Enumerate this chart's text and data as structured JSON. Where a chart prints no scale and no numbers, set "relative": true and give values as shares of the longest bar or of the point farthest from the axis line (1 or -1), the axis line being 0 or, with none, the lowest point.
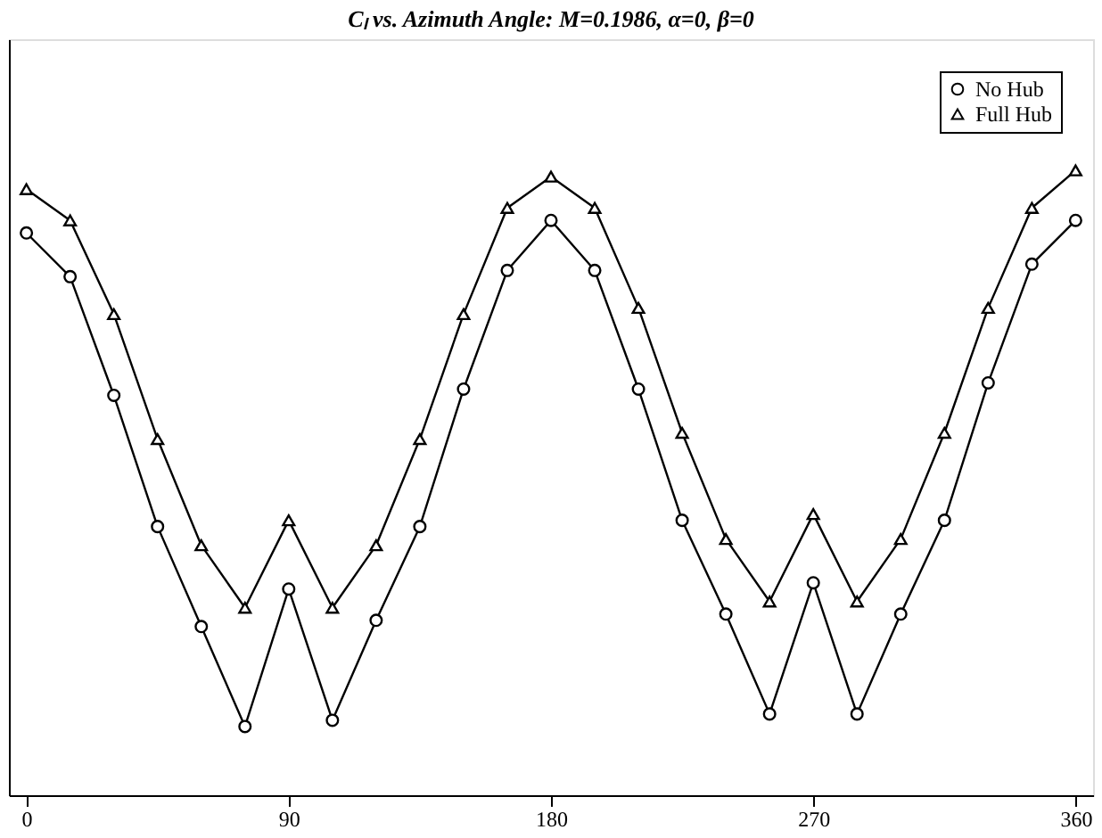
{
  "chart_data": {
    "type": "line",
    "title": "Cₗ vs. Azimuth Angle: M=0.1986, α=0, β=0",
    "x": [
      0,
      15,
      30,
      45,
      60,
      75,
      90,
      105,
      120,
      135,
      150,
      165,
      180,
      195,
      210,
      225,
      240,
      255,
      270,
      285,
      300,
      315,
      330,
      345,
      360
    ],
    "xlim": [
      -6,
      366
    ],
    "xticks": [
      0,
      90,
      180,
      270,
      360
    ],
    "relative": true,
    "grid": false,
    "legend": "top right",
    "line_style": "solid",
    "series": [
      {
        "name": "No Hub",
        "color": "#000000",
        "marker": "circle",
        "values": [
          0.9,
          0.83,
          0.64,
          0.43,
          0.27,
          0.11,
          0.33,
          0.12,
          0.28,
          0.43,
          0.65,
          0.84,
          0.92,
          0.84,
          0.65,
          0.44,
          0.29,
          0.13,
          0.34,
          0.13,
          0.29,
          0.44,
          0.66,
          0.85,
          0.92
        ]
      },
      {
        "name": "Full Hub",
        "color": "#000000",
        "marker": "triangle",
        "values": [
          0.97,
          0.92,
          0.77,
          0.57,
          0.4,
          0.3,
          0.44,
          0.3,
          0.4,
          0.57,
          0.77,
          0.94,
          0.99,
          0.94,
          0.78,
          0.58,
          0.41,
          0.31,
          0.45,
          0.31,
          0.41,
          0.58,
          0.78,
          0.94,
          1.0
        ]
      }
    ]
  }
}
